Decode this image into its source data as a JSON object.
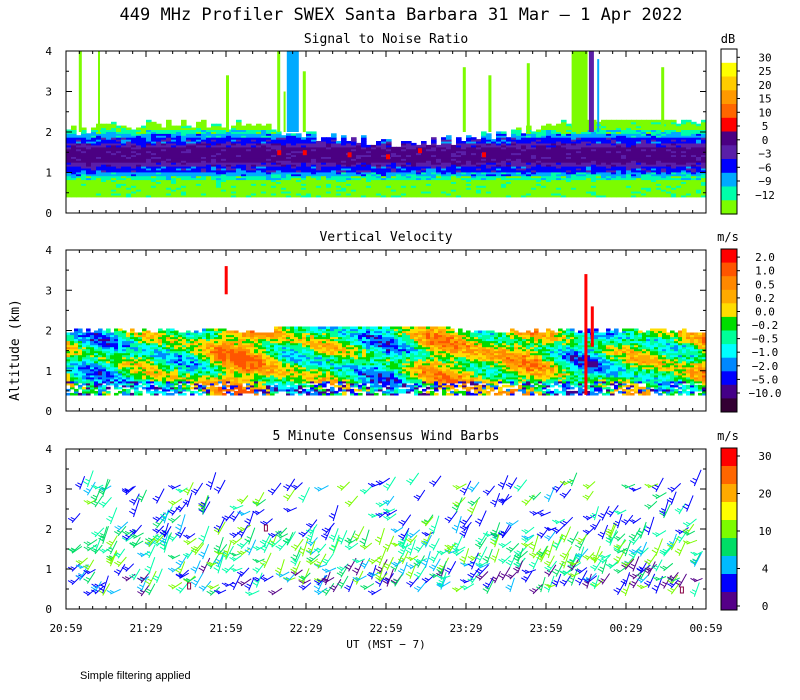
{
  "page": {
    "title": "449 MHz Profiler SWEX Santa Barbara 31 Mar —  1 Apr 2022",
    "footnote": "Simple filtering applied"
  },
  "axes": {
    "ylabel": "Altitude (km)",
    "xlabel": "UT  (MST − 7)",
    "y_ticks": [
      "0",
      "1",
      "2",
      "3",
      "4"
    ],
    "x_ticks": [
      "20:59",
      "21:29",
      "21:59",
      "22:29",
      "22:59",
      "23:29",
      "23:59",
      "00:29",
      "00:59"
    ]
  },
  "chart_data": [
    {
      "type": "heatmap",
      "title": "Signal to Noise Ratio",
      "xlabel": "UT (MST - 7)",
      "ylabel": "Altitude (km)",
      "ylim": [
        0,
        4
      ],
      "colorbar_unit": "dB",
      "colorbar_labels": [
        "30",
        "25",
        "20",
        "15",
        "10",
        "5",
        "0",
        "−3",
        "−6",
        "−9",
        "−12"
      ],
      "colorbar_colors": [
        "#ffffff",
        "#ffff00",
        "#ffcc00",
        "#ff9900",
        "#ff6600",
        "#ff0000",
        "#4b0082",
        "#5a1fa8",
        "#0000ff",
        "#00aaff",
        "#00ffaa",
        "#7cfc00"
      ],
      "data_altitude_range_km": [
        0.4,
        2.3
      ],
      "peak_layer_km": [
        1.2,
        1.7
      ]
    },
    {
      "type": "heatmap",
      "title": "Vertical Velocity",
      "xlabel": "UT (MST - 7)",
      "ylabel": "Altitude (km)",
      "ylim": [
        0,
        4
      ],
      "colorbar_unit": "m/s",
      "colorbar_labels": [
        "2.0",
        "1.0",
        "0.5",
        "0.2",
        "0.0",
        "−0.2",
        "−0.5",
        "−1.0",
        "−2.0",
        "−5.0",
        "−10.0"
      ],
      "colorbar_colors": [
        "#ff0000",
        "#ff5500",
        "#ff8800",
        "#ffaa00",
        "#ffdd00",
        "#00dd00",
        "#00ff99",
        "#00ffff",
        "#0088ff",
        "#0000ff",
        "#440088",
        "#330033"
      ],
      "data_altitude_range_km": [
        0.4,
        2.1
      ]
    },
    {
      "type": "scatter",
      "title": "5 Minute Consensus Wind Barbs",
      "xlabel": "UT (MST - 7)",
      "ylabel": "Altitude (km)",
      "ylim": [
        0,
        4
      ],
      "colorbar_unit": "m/s",
      "colorbar_labels": [
        "30",
        "20",
        "10",
        "4",
        "0"
      ],
      "colorbar_colors": [
        "#ff0000",
        "#ff6600",
        "#ffaa00",
        "#ffff00",
        "#7cfc00",
        "#00dd66",
        "#00bbff",
        "#0000ff",
        "#550088"
      ],
      "data_altitude_range_km": [
        0.3,
        3.1
      ]
    }
  ]
}
